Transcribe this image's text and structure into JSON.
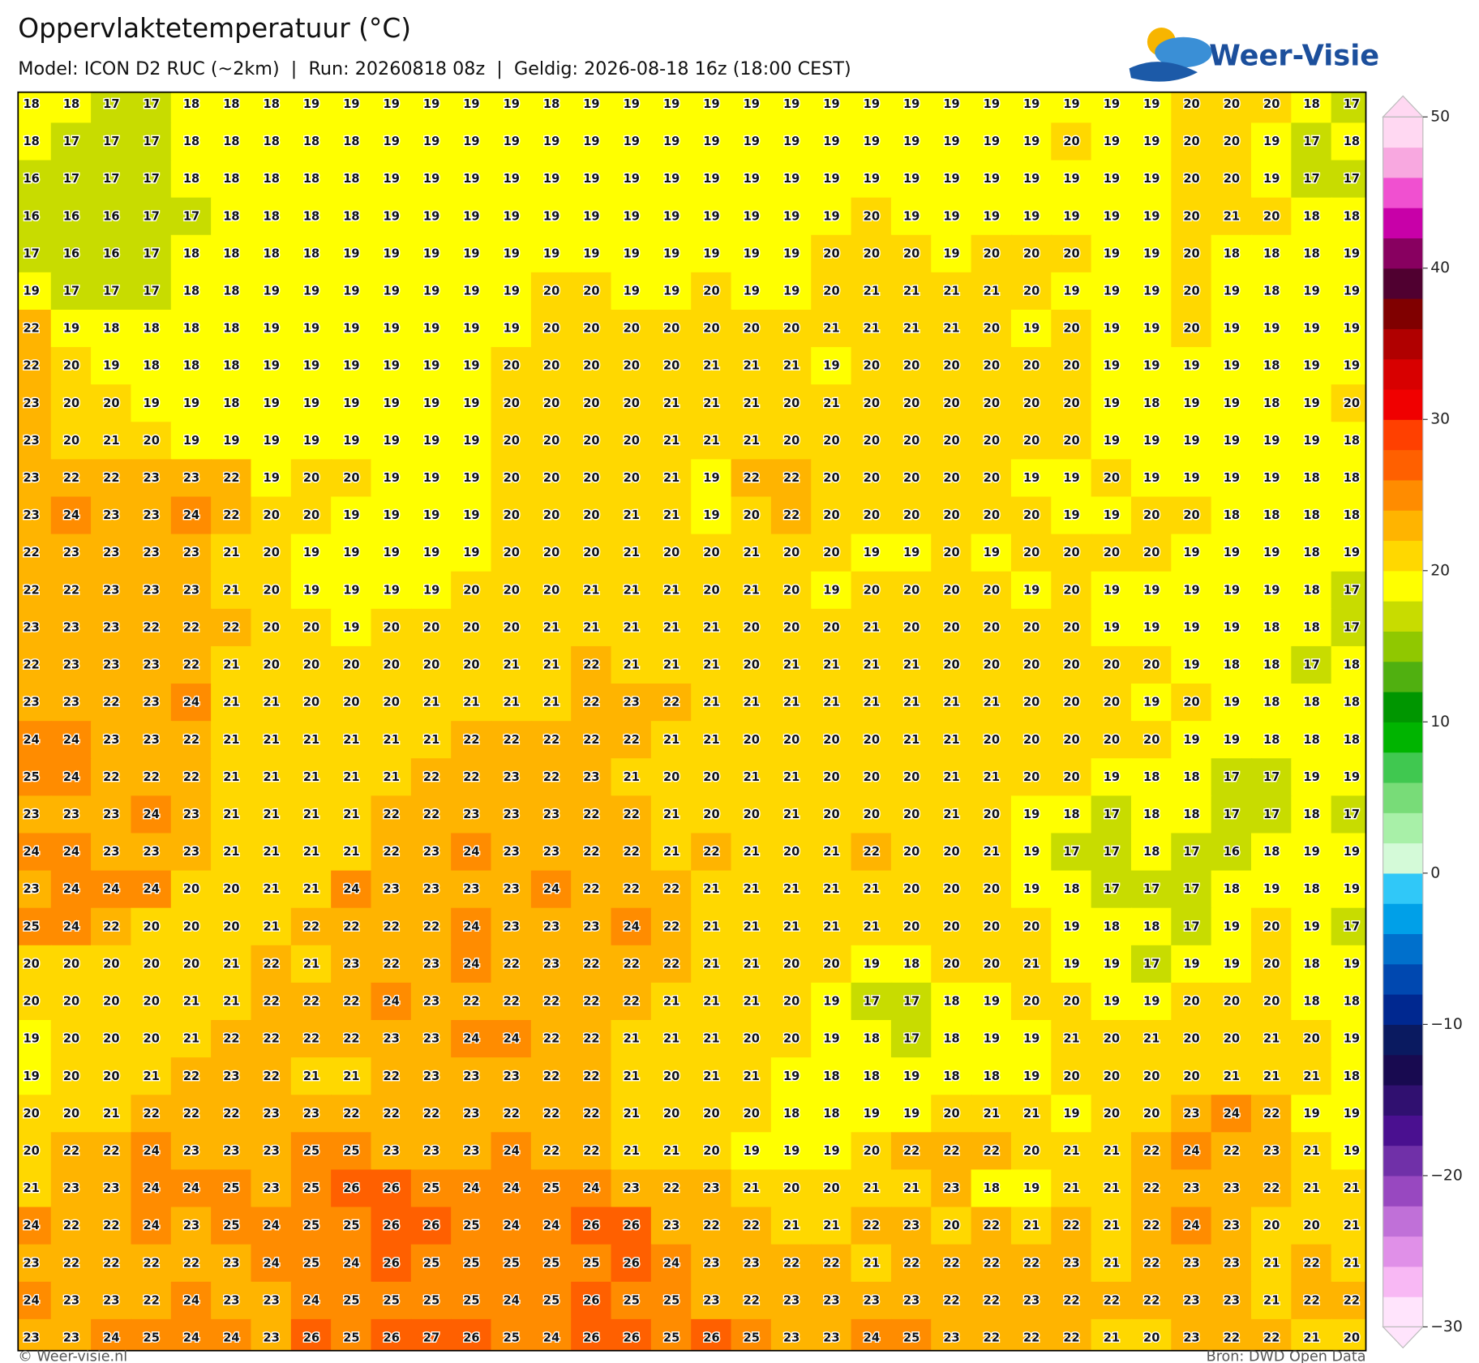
{
  "header": {
    "title": "Oppervlaktetemperatuur (°C)",
    "subtitle": "Model: ICON D2 RUC (~2km)  |  Run: 20260818 08z  |  Geldig: 2026-08-18 16z (18:00 CEST)",
    "logo": "Weer-Visie"
  },
  "footer": {
    "left": "© Weer-visie.nl",
    "right": "Bron: DWD Open Data"
  },
  "colorbar": {
    "lim": [
      -30,
      50
    ],
    "ticks": [
      {
        "value": -30,
        "label": "−30"
      },
      {
        "value": -20,
        "label": "−20"
      },
      {
        "value": -10,
        "label": "−10"
      },
      0,
      10,
      20,
      30,
      40,
      50
    ],
    "colors": [
      "#ffe4fc",
      "#f8b8f4",
      "#e090e8",
      "#c070d8",
      "#9848c0",
      "#7030a8",
      "#4a1090",
      "#301070",
      "#180a50",
      "#0a1a60",
      "#002890",
      "#0048b0",
      "#0070cc",
      "#00a0e8",
      "#30c8f8",
      "#d4fad8",
      "#a8f0a8",
      "#78dc78",
      "#40c850",
      "#00b400",
      "#009600",
      "#50b010",
      "#90c800",
      "#c8dc00",
      "#ffff00",
      "#ffd800",
      "#ffb400",
      "#ff8c00",
      "#ff6000",
      "#ff4000",
      "#f00000",
      "#d80000",
      "#b00000",
      "#800000",
      "#500030",
      "#880060",
      "#c800a8",
      "#f050d0",
      "#f8a8e0",
      "#ffd8f2"
    ]
  },
  "grid": {
    "rows": [
      [
        18,
        18,
        17,
        17,
        18,
        18,
        18,
        19,
        19,
        19,
        19,
        19,
        19,
        18,
        19,
        19,
        19,
        19,
        19,
        19,
        19,
        19,
        19,
        19,
        19,
        19,
        19,
        19,
        19,
        20,
        20,
        20,
        18,
        17
      ],
      [
        18,
        17,
        17,
        17,
        18,
        18,
        18,
        18,
        18,
        19,
        19,
        19,
        19,
        19,
        19,
        19,
        19,
        19,
        19,
        19,
        19,
        19,
        19,
        19,
        19,
        19,
        20,
        19,
        19,
        20,
        20,
        19,
        17,
        18
      ],
      [
        16,
        17,
        17,
        17,
        18,
        18,
        18,
        18,
        18,
        19,
        19,
        19,
        19,
        19,
        19,
        19,
        19,
        19,
        19,
        19,
        19,
        19,
        19,
        19,
        19,
        19,
        19,
        19,
        19,
        20,
        20,
        19,
        17,
        17
      ],
      [
        16,
        16,
        16,
        17,
        17,
        18,
        18,
        18,
        18,
        19,
        19,
        19,
        19,
        19,
        19,
        19,
        19,
        19,
        19,
        19,
        19,
        20,
        19,
        19,
        19,
        19,
        19,
        19,
        19,
        20,
        21,
        20,
        18,
        18
      ],
      [
        17,
        16,
        16,
        17,
        18,
        18,
        18,
        18,
        19,
        19,
        19,
        19,
        19,
        19,
        19,
        19,
        19,
        19,
        19,
        19,
        20,
        20,
        20,
        19,
        20,
        20,
        20,
        19,
        19,
        20,
        18,
        18,
        18,
        19
      ],
      [
        19,
        17,
        17,
        17,
        18,
        18,
        19,
        19,
        19,
        19,
        19,
        19,
        19,
        20,
        20,
        19,
        19,
        20,
        19,
        19,
        20,
        21,
        21,
        21,
        21,
        20,
        19,
        19,
        19,
        20,
        19,
        18,
        19,
        19
      ],
      [
        22,
        19,
        18,
        18,
        18,
        18,
        19,
        19,
        19,
        19,
        19,
        19,
        19,
        20,
        20,
        20,
        20,
        20,
        20,
        20,
        21,
        21,
        21,
        21,
        20,
        19,
        20,
        19,
        19,
        20,
        19,
        19,
        19,
        19
      ],
      [
        22,
        20,
        19,
        18,
        18,
        18,
        19,
        19,
        19,
        19,
        19,
        19,
        20,
        20,
        20,
        20,
        20,
        21,
        21,
        21,
        19,
        20,
        20,
        20,
        20,
        20,
        20,
        19,
        19,
        19,
        19,
        18,
        19,
        19
      ],
      [
        23,
        20,
        20,
        19,
        19,
        18,
        19,
        19,
        19,
        19,
        19,
        19,
        20,
        20,
        20,
        20,
        21,
        21,
        21,
        20,
        21,
        20,
        20,
        20,
        20,
        20,
        20,
        19,
        18,
        19,
        19,
        18,
        19,
        20
      ],
      [
        23,
        20,
        21,
        20,
        19,
        19,
        19,
        19,
        19,
        19,
        19,
        19,
        20,
        20,
        20,
        20,
        21,
        21,
        21,
        20,
        20,
        20,
        20,
        20,
        20,
        20,
        20,
        19,
        19,
        19,
        19,
        19,
        19,
        18
      ],
      [
        23,
        22,
        22,
        23,
        23,
        22,
        19,
        20,
        20,
        19,
        19,
        19,
        20,
        20,
        20,
        20,
        21,
        19,
        22,
        22,
        20,
        20,
        20,
        20,
        20,
        19,
        19,
        20,
        19,
        19,
        19,
        19,
        18,
        18
      ],
      [
        23,
        24,
        23,
        23,
        24,
        22,
        20,
        20,
        19,
        19,
        19,
        19,
        20,
        20,
        20,
        21,
        21,
        19,
        20,
        22,
        20,
        20,
        20,
        20,
        20,
        20,
        19,
        19,
        20,
        20,
        18,
        18,
        18,
        18
      ],
      [
        22,
        23,
        23,
        23,
        23,
        21,
        20,
        19,
        19,
        19,
        19,
        19,
        20,
        20,
        20,
        21,
        20,
        20,
        21,
        20,
        20,
        19,
        19,
        20,
        19,
        20,
        20,
        20,
        20,
        19,
        19,
        19,
        18,
        19
      ],
      [
        22,
        22,
        23,
        23,
        23,
        21,
        20,
        19,
        19,
        19,
        19,
        20,
        20,
        20,
        21,
        21,
        21,
        20,
        21,
        20,
        19,
        20,
        20,
        20,
        20,
        19,
        20,
        19,
        19,
        19,
        19,
        19,
        18,
        17
      ],
      [
        23,
        23,
        23,
        22,
        22,
        22,
        20,
        20,
        19,
        20,
        20,
        20,
        20,
        21,
        21,
        21,
        21,
        21,
        20,
        20,
        20,
        21,
        20,
        20,
        20,
        20,
        20,
        19,
        19,
        19,
        19,
        18,
        18,
        17
      ],
      [
        22,
        23,
        23,
        23,
        22,
        21,
        20,
        20,
        20,
        20,
        20,
        20,
        21,
        21,
        22,
        21,
        21,
        21,
        20,
        21,
        21,
        21,
        21,
        20,
        20,
        20,
        20,
        20,
        20,
        19,
        18,
        18,
        17,
        18
      ],
      [
        23,
        23,
        22,
        23,
        24,
        21,
        21,
        20,
        20,
        20,
        21,
        21,
        21,
        21,
        22,
        23,
        22,
        21,
        21,
        21,
        21,
        21,
        21,
        21,
        21,
        20,
        20,
        20,
        19,
        20,
        19,
        18,
        18,
        18
      ],
      [
        24,
        24,
        23,
        23,
        22,
        21,
        21,
        21,
        21,
        21,
        21,
        22,
        22,
        22,
        22,
        22,
        21,
        21,
        20,
        20,
        20,
        20,
        21,
        21,
        20,
        20,
        20,
        20,
        20,
        19,
        19,
        18,
        18,
        18
      ],
      [
        25,
        24,
        22,
        22,
        22,
        21,
        21,
        21,
        21,
        21,
        22,
        22,
        23,
        22,
        23,
        21,
        20,
        20,
        21,
        21,
        20,
        20,
        20,
        21,
        21,
        20,
        20,
        19,
        18,
        18,
        17,
        17,
        19,
        19
      ],
      [
        23,
        23,
        23,
        24,
        23,
        21,
        21,
        21,
        21,
        22,
        22,
        23,
        23,
        23,
        22,
        22,
        21,
        20,
        20,
        21,
        20,
        20,
        20,
        21,
        20,
        19,
        18,
        17,
        18,
        18,
        17,
        17,
        18,
        17
      ],
      [
        24,
        24,
        23,
        23,
        23,
        21,
        21,
        21,
        21,
        22,
        23,
        24,
        23,
        23,
        22,
        22,
        21,
        22,
        21,
        20,
        21,
        22,
        20,
        20,
        21,
        19,
        17,
        17,
        18,
        17,
        16,
        18,
        19,
        19
      ],
      [
        23,
        24,
        24,
        24,
        20,
        20,
        21,
        21,
        24,
        23,
        23,
        23,
        23,
        24,
        22,
        22,
        22,
        21,
        21,
        21,
        21,
        21,
        20,
        20,
        20,
        19,
        18,
        17,
        17,
        17,
        18,
        19,
        18,
        19
      ],
      [
        25,
        24,
        22,
        20,
        20,
        20,
        21,
        22,
        22,
        22,
        22,
        24,
        23,
        23,
        23,
        24,
        22,
        21,
        21,
        21,
        21,
        21,
        20,
        20,
        20,
        20,
        19,
        18,
        18,
        17,
        19,
        20,
        19,
        17
      ],
      [
        20,
        20,
        20,
        20,
        20,
        21,
        22,
        21,
        23,
        22,
        23,
        24,
        22,
        23,
        22,
        22,
        22,
        21,
        21,
        20,
        20,
        19,
        18,
        20,
        20,
        21,
        19,
        19,
        17,
        19,
        19,
        20,
        18,
        19
      ],
      [
        20,
        20,
        20,
        20,
        21,
        21,
        22,
        22,
        22,
        24,
        23,
        22,
        22,
        22,
        22,
        22,
        21,
        21,
        21,
        20,
        19,
        17,
        17,
        18,
        19,
        20,
        20,
        19,
        19,
        20,
        20,
        20,
        18,
        18
      ],
      [
        19,
        20,
        20,
        20,
        21,
        22,
        22,
        22,
        22,
        23,
        23,
        24,
        24,
        22,
        22,
        21,
        21,
        21,
        20,
        20,
        19,
        18,
        17,
        18,
        19,
        19,
        21,
        20,
        21,
        20,
        20,
        21,
        20,
        19
      ],
      [
        19,
        20,
        20,
        21,
        22,
        23,
        22,
        21,
        21,
        22,
        23,
        23,
        23,
        22,
        22,
        21,
        20,
        21,
        21,
        19,
        18,
        18,
        19,
        18,
        18,
        19,
        20,
        20,
        20,
        20,
        21,
        21,
        21,
        18
      ],
      [
        20,
        20,
        21,
        22,
        22,
        22,
        23,
        23,
        22,
        22,
        22,
        23,
        22,
        22,
        22,
        21,
        20,
        20,
        20,
        18,
        18,
        19,
        19,
        20,
        21,
        21,
        19,
        20,
        20,
        23,
        24,
        22,
        19,
        19
      ],
      [
        20,
        22,
        22,
        24,
        23,
        23,
        23,
        25,
        25,
        23,
        23,
        23,
        24,
        22,
        22,
        21,
        21,
        20,
        19,
        19,
        19,
        20,
        22,
        22,
        22,
        20,
        21,
        21,
        22,
        24,
        22,
        23,
        21,
        19
      ],
      [
        21,
        23,
        23,
        24,
        24,
        25,
        23,
        25,
        26,
        26,
        25,
        24,
        24,
        25,
        24,
        23,
        22,
        23,
        21,
        20,
        20,
        21,
        21,
        23,
        18,
        19,
        21,
        21,
        22,
        23,
        23,
        22,
        21,
        21
      ],
      [
        24,
        22,
        22,
        24,
        23,
        25,
        24,
        25,
        25,
        26,
        26,
        25,
        24,
        24,
        26,
        26,
        23,
        22,
        22,
        21,
        21,
        22,
        23,
        20,
        22,
        21,
        22,
        21,
        22,
        24,
        23,
        20,
        20,
        21
      ],
      [
        23,
        22,
        22,
        22,
        22,
        23,
        24,
        25,
        24,
        26,
        25,
        25,
        25,
        25,
        25,
        26,
        24,
        23,
        23,
        22,
        22,
        21,
        22,
        22,
        22,
        22,
        23,
        21,
        22,
        23,
        23,
        21,
        22,
        21
      ],
      [
        24,
        23,
        23,
        22,
        24,
        23,
        23,
        24,
        25,
        25,
        25,
        25,
        24,
        25,
        26,
        25,
        25,
        23,
        22,
        23,
        23,
        23,
        23,
        22,
        22,
        23,
        22,
        22,
        22,
        23,
        23,
        21,
        22,
        22
      ],
      [
        23,
        23,
        24,
        25,
        24,
        24,
        23,
        26,
        25,
        26,
        27,
        26,
        25,
        24,
        26,
        26,
        25,
        26,
        25,
        23,
        23,
        24,
        25,
        23,
        22,
        22,
        22,
        21,
        20,
        23,
        22,
        22,
        21,
        20
      ]
    ]
  }
}
